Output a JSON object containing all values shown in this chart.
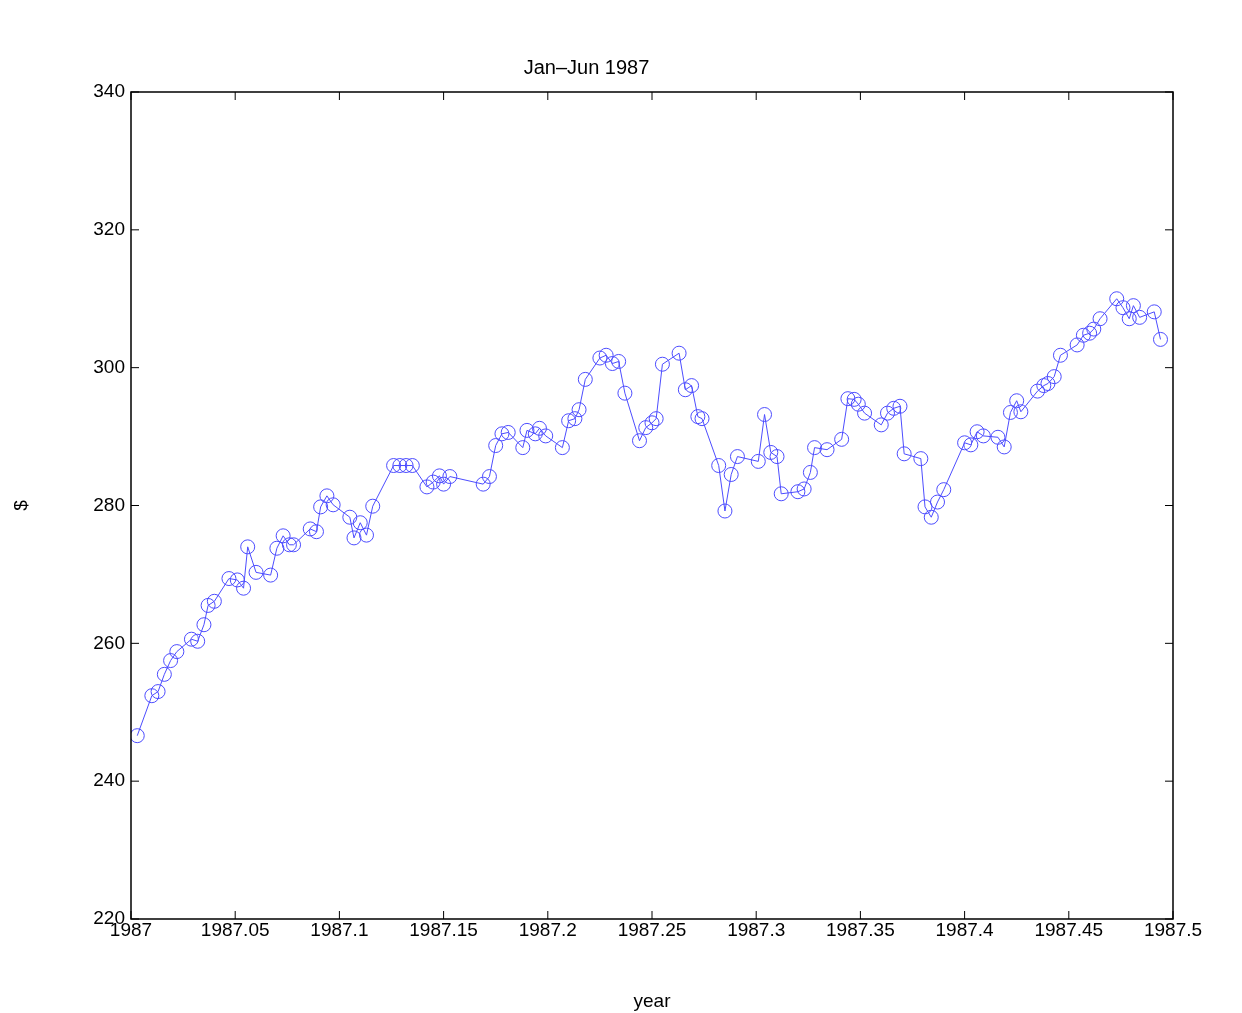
{
  "chart_data": {
    "type": "line",
    "title": "Jan–Jun 1987",
    "xlabel": "year",
    "ylabel": "$",
    "marker": "circle",
    "line_style": "solid",
    "legend": false,
    "grid": false,
    "xlim": [
      1987,
      1987.5
    ],
    "xticks": [
      1987,
      1987.05,
      1987.1,
      1987.15,
      1987.2,
      1987.25,
      1987.3,
      1987.35,
      1987.4,
      1987.45,
      1987.5
    ],
    "ylim": [
      220,
      340
    ],
    "yticks": [
      220,
      240,
      260,
      280,
      300,
      320,
      340
    ],
    "series": [
      {
        "color": "#4d4dff",
        "x": [
          1987.003,
          1987.01,
          1987.013,
          1987.016,
          1987.019,
          1987.022,
          1987.029,
          1987.032,
          1987.035,
          1987.037,
          1987.04,
          1987.047,
          1987.051,
          1987.054,
          1987.056,
          1987.06,
          1987.067,
          1987.07,
          1987.073,
          1987.076,
          1987.078,
          1987.086,
          1987.089,
          1987.091,
          1987.094,
          1987.097,
          1987.105,
          1987.107,
          1987.11,
          1987.113,
          1987.116,
          1987.126,
          1987.129,
          1987.132,
          1987.135,
          1987.142,
          1987.145,
          1987.148,
          1987.15,
          1987.153,
          1987.169,
          1987.172,
          1987.175,
          1987.178,
          1987.181,
          1987.188,
          1987.19,
          1987.194,
          1987.196,
          1987.199,
          1987.207,
          1987.21,
          1987.213,
          1987.215,
          1987.218,
          1987.225,
          1987.228,
          1987.231,
          1987.234,
          1987.237,
          1987.244,
          1987.247,
          1987.25,
          1987.252,
          1987.255,
          1987.263,
          1987.266,
          1987.269,
          1987.272,
          1987.274,
          1987.282,
          1987.285,
          1987.288,
          1987.291,
          1987.301,
          1987.304,
          1987.307,
          1987.31,
          1987.312,
          1987.32,
          1987.323,
          1987.326,
          1987.328,
          1987.334,
          1987.341,
          1987.344,
          1987.347,
          1987.349,
          1987.352,
          1987.36,
          1987.363,
          1987.366,
          1987.369,
          1987.371,
          1987.379,
          1987.381,
          1987.384,
          1987.387,
          1987.39,
          1987.4,
          1987.403,
          1987.406,
          1987.409,
          1987.416,
          1987.419,
          1987.422,
          1987.425,
          1987.427,
          1987.435,
          1987.438,
          1987.44,
          1987.443,
          1987.446,
          1987.454,
          1987.457,
          1987.46,
          1987.462,
          1987.465,
          1987.473,
          1987.476,
          1987.479,
          1987.481,
          1987.484,
          1987.491,
          1987.494
        ],
        "values": [
          246.6,
          252.4,
          253.0,
          255.5,
          257.5,
          258.8,
          260.6,
          260.3,
          262.7,
          265.5,
          266.1,
          269.4,
          269.2,
          268.0,
          274.0,
          270.3,
          269.9,
          273.8,
          275.6,
          274.3,
          274.3,
          276.6,
          276.2,
          279.8,
          281.4,
          280.1,
          278.3,
          275.3,
          277.5,
          275.7,
          279.9,
          285.8,
          285.8,
          285.8,
          285.8,
          282.7,
          283.4,
          284.3,
          283.1,
          284.2,
          283.1,
          284.2,
          288.7,
          290.4,
          290.6,
          288.4,
          290.9,
          290.4,
          291.2,
          290.1,
          288.4,
          292.3,
          292.6,
          293.9,
          298.3,
          301.4,
          301.8,
          300.6,
          300.9,
          296.3,
          289.4,
          291.3,
          292.0,
          292.6,
          300.5,
          302.1,
          296.8,
          297.4,
          292.9,
          292.6,
          285.8,
          279.2,
          284.5,
          287.1,
          286.4,
          293.2,
          287.7,
          287.1,
          281.7,
          282.0,
          282.4,
          284.8,
          288.4,
          288.1,
          289.6,
          295.5,
          295.4,
          294.7,
          293.4,
          291.7,
          293.4,
          294.1,
          294.4,
          287.5,
          286.8,
          279.8,
          278.3,
          280.5,
          282.3,
          289.1,
          288.8,
          290.7,
          290.1,
          289.9,
          288.5,
          293.5,
          295.2,
          293.6,
          296.6,
          297.4,
          297.7,
          298.7,
          301.8,
          303.3,
          304.7,
          305.0,
          305.6,
          307.1,
          310.0,
          308.7,
          307.1,
          309.0,
          307.3,
          308.1,
          304.1
        ]
      }
    ]
  }
}
